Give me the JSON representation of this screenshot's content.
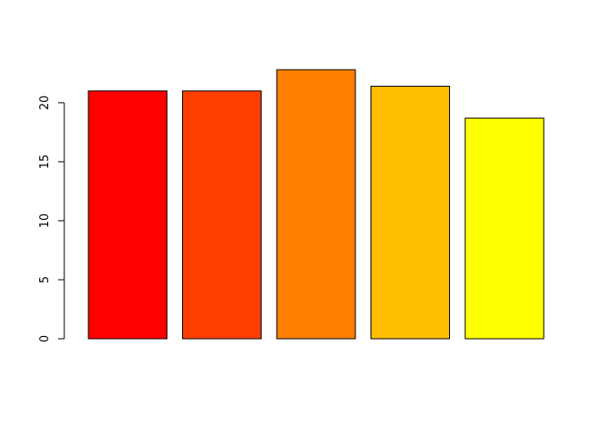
{
  "chart_data": {
    "type": "bar",
    "categories": [
      "",
      "",
      "",
      "",
      ""
    ],
    "values": [
      21.0,
      21.0,
      22.8,
      21.4,
      18.7
    ],
    "colors": [
      "#FF0000",
      "#FF4000",
      "#FF8000",
      "#FFBF00",
      "#FFFF00"
    ],
    "title": "",
    "xlabel": "",
    "ylabel": "",
    "ylim": [
      0,
      22.8
    ],
    "yticks": [
      0,
      5,
      10,
      15,
      20
    ],
    "ytick_labels": [
      "0",
      "5",
      "10",
      "15",
      "20"
    ],
    "grid": false,
    "legend": "none"
  }
}
